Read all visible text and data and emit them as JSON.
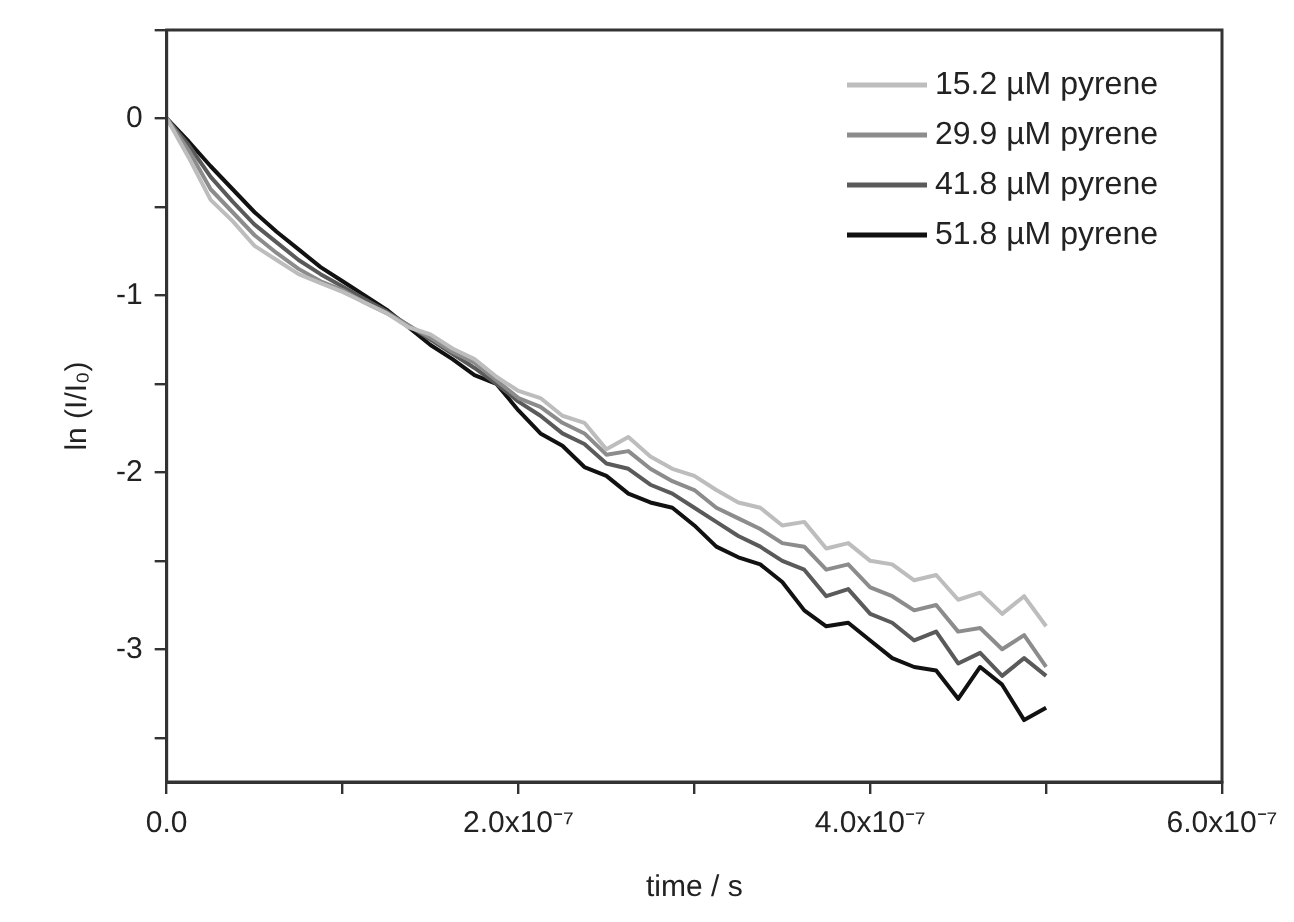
{
  "chart_data": {
    "type": "line",
    "xlabel": "time / s",
    "ylabel": "ln (I/I₀)",
    "x": [
      0,
      1.25e-08,
      2.5e-08,
      3.75e-08,
      5e-08,
      6.25e-08,
      7.5e-08,
      8.75e-08,
      1e-07,
      1.125e-07,
      1.25e-07,
      1.375e-07,
      1.5e-07,
      1.625e-07,
      1.75e-07,
      1.875e-07,
      2e-07,
      2.125e-07,
      2.25e-07,
      2.375e-07,
      2.5e-07,
      2.625e-07,
      2.75e-07,
      2.875e-07,
      3e-07,
      3.125e-07,
      3.25e-07,
      3.375e-07,
      3.5e-07,
      3.625e-07,
      3.75e-07,
      3.875e-07,
      4e-07,
      4.125e-07,
      4.25e-07,
      4.375e-07,
      4.5e-07,
      4.625e-07,
      4.75e-07,
      4.875e-07,
      5e-07
    ],
    "series": [
      {
        "name": "15.2 µM pyrene",
        "color": "#bdbdbd",
        "values": [
          0,
          -0.22,
          -0.46,
          -0.58,
          -0.72,
          -0.8,
          -0.88,
          -0.93,
          -0.98,
          -1.04,
          -1.1,
          -1.18,
          -1.22,
          -1.3,
          -1.36,
          -1.46,
          -1.54,
          -1.58,
          -1.68,
          -1.72,
          -1.87,
          -1.8,
          -1.91,
          -1.98,
          -2.02,
          -2.1,
          -2.17,
          -2.2,
          -2.3,
          -2.28,
          -2.43,
          -2.4,
          -2.5,
          -2.52,
          -2.61,
          -2.58,
          -2.72,
          -2.68,
          -2.8,
          -2.7,
          -2.87
        ]
      },
      {
        "name": "29.9 µM pyrene",
        "color": "#8c8c8c",
        "values": [
          0,
          -0.18,
          -0.4,
          -0.53,
          -0.66,
          -0.76,
          -0.85,
          -0.92,
          -0.97,
          -1.04,
          -1.1,
          -1.17,
          -1.24,
          -1.32,
          -1.38,
          -1.48,
          -1.58,
          -1.63,
          -1.72,
          -1.78,
          -1.9,
          -1.88,
          -1.98,
          -2.05,
          -2.1,
          -2.2,
          -2.26,
          -2.32,
          -2.4,
          -2.42,
          -2.55,
          -2.52,
          -2.65,
          -2.7,
          -2.78,
          -2.75,
          -2.9,
          -2.88,
          -3.0,
          -2.92,
          -3.1
        ]
      },
      {
        "name": "41.8 µM pyrene",
        "color": "#5a5a5a",
        "values": [
          0,
          -0.15,
          -0.33,
          -0.47,
          -0.6,
          -0.7,
          -0.8,
          -0.88,
          -0.95,
          -1.02,
          -1.09,
          -1.17,
          -1.25,
          -1.33,
          -1.41,
          -1.5,
          -1.6,
          -1.68,
          -1.78,
          -1.84,
          -1.95,
          -1.98,
          -2.07,
          -2.12,
          -2.2,
          -2.28,
          -2.36,
          -2.42,
          -2.5,
          -2.55,
          -2.7,
          -2.66,
          -2.8,
          -2.85,
          -2.95,
          -2.9,
          -3.08,
          -3.02,
          -3.15,
          -3.05,
          -3.15
        ]
      },
      {
        "name": "51.8 µM pyrene",
        "color": "#111111",
        "values": [
          0,
          -0.13,
          -0.27,
          -0.4,
          -0.53,
          -0.64,
          -0.74,
          -0.84,
          -0.92,
          -1.0,
          -1.08,
          -1.18,
          -1.28,
          -1.36,
          -1.45,
          -1.5,
          -1.65,
          -1.78,
          -1.85,
          -1.97,
          -2.02,
          -2.12,
          -2.17,
          -2.2,
          -2.3,
          -2.42,
          -2.48,
          -2.52,
          -2.62,
          -2.78,
          -2.87,
          -2.85,
          -2.95,
          -3.05,
          -3.1,
          -3.12,
          -3.28,
          -3.1,
          -3.2,
          -3.4,
          -3.33
        ]
      }
    ],
    "xlim": [
      0,
      6e-07
    ],
    "xticks": [
      {
        "value": 0,
        "label": "0.0"
      },
      {
        "value": 1e-07,
        "label": null
      },
      {
        "value": 2e-07,
        "label": "2.0x10⁻⁷"
      },
      {
        "value": 3e-07,
        "label": null
      },
      {
        "value": 4e-07,
        "label": "4.0x10⁻⁷"
      },
      {
        "value": 5e-07,
        "label": null
      },
      {
        "value": 6e-07,
        "label": "6.0x10⁻⁷"
      }
    ],
    "ylim": [
      -3.75,
      0.5
    ],
    "yticks": [
      {
        "value": 0.5,
        "label": null
      },
      0,
      {
        "value": -0.5,
        "label": null
      },
      -1,
      {
        "value": -1.5,
        "label": null
      },
      -2,
      {
        "value": -2.5,
        "label": null
      },
      -3,
      {
        "value": -3.5,
        "label": null
      }
    ],
    "legend": "top right",
    "marker": "none",
    "line_style": "solid"
  }
}
